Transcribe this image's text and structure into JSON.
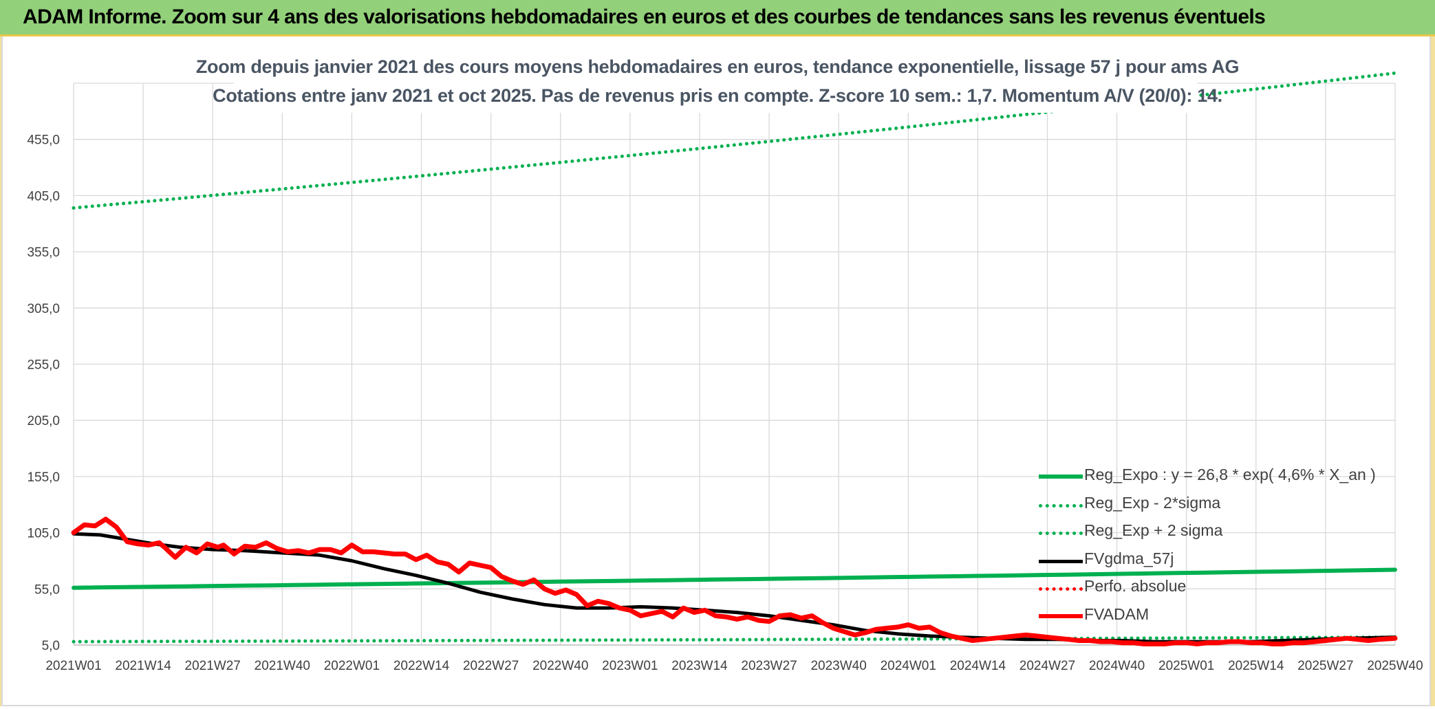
{
  "banner_title": "ADAM Informe. Zoom sur 4 ans des valorisations hebdomadaires en euros et des courbes de tendances sans les revenus éventuels",
  "chart_data": {
    "type": "line",
    "title_line1": "Zoom depuis janvier 2021 des cours moyens hebdomadaires en euros, tendance exponentielle, lissage 57 j pour ams AG",
    "title_line2": "Cotations entre janv 2021 et oct 2025. Pas de revenus pris en compte. Z-score 10 sem.: 1,7. Momentum A/V (20/0): 14.",
    "xlabel": "",
    "ylabel": "",
    "ylim": [
      5,
      505
    ],
    "grid": true,
    "y_ticks": [
      "5,0",
      "55,0",
      "105,0",
      "155,0",
      "205,0",
      "255,0",
      "305,0",
      "355,0",
      "405,0",
      "455,0"
    ],
    "y_tick_values": [
      5,
      55,
      105,
      155,
      205,
      255,
      305,
      355,
      405,
      455
    ],
    "x_ticks": [
      "2021W01",
      "2021W14",
      "2021W27",
      "2021W40",
      "2022W01",
      "2022W14",
      "2022W27",
      "2022W40",
      "2023W01",
      "2023W14",
      "2023W27",
      "2023W40",
      "2024W01",
      "2024W14",
      "2024W27",
      "2024W40",
      "2025W01",
      "2025W14",
      "2025W27",
      "2025W40"
    ],
    "x_tick_weeks": [
      0,
      13,
      26,
      39,
      52,
      65,
      78,
      91,
      104,
      117,
      130,
      143,
      156,
      169,
      182,
      195,
      208,
      221,
      234,
      247
    ],
    "legend_position": "bottom-right",
    "series": [
      {
        "name": "Reg_Expo : y = 26,8 * exp( 4,6% *  X_an )",
        "color": "#00b050",
        "style": "solid-thick",
        "x": [
          0,
          247
        ],
        "y": [
          56,
          72
        ]
      },
      {
        "name": "Reg_Exp - 2*sigma",
        "color": "#00b050",
        "style": "dotted",
        "x": [
          0,
          247
        ],
        "y": [
          8,
          12
        ]
      },
      {
        "name": "Reg_Exp + 2 sigma",
        "color": "#00b050",
        "style": "dotted",
        "x": [
          0,
          247
        ],
        "y": [
          394,
          514
        ]
      },
      {
        "name": "FVgdma_57j",
        "color": "#000000",
        "style": "solid",
        "x": [
          0,
          5,
          10,
          15,
          20,
          26,
          32,
          39,
          46,
          52,
          58,
          64,
          70,
          76,
          82,
          88,
          94,
          100,
          106,
          112,
          118,
          124,
          130,
          136,
          142,
          148,
          154,
          160,
          166,
          172,
          178,
          184,
          190,
          196,
          202,
          208,
          214,
          220,
          226,
          232,
          238,
          247
        ],
        "y": [
          104,
          103,
          99,
          95,
          92,
          90,
          89,
          87,
          85,
          80,
          73,
          67,
          60,
          52,
          46,
          41,
          38,
          38,
          39,
          38,
          36,
          34,
          31,
          27,
          23,
          18,
          15,
          13,
          12,
          11,
          10,
          10,
          9,
          9,
          8,
          8,
          8,
          8,
          9,
          10,
          11,
          12
        ]
      },
      {
        "name": "Perfo. absolue",
        "color": "#ff0000",
        "style": "dotted",
        "x": [],
        "y": []
      },
      {
        "name": "FVADAM",
        "color": "#ff0000",
        "style": "solid-thick",
        "x": [
          0,
          2,
          4,
          6,
          8,
          10,
          12,
          14,
          16,
          17,
          19,
          21,
          23,
          25,
          27,
          28,
          30,
          32,
          34,
          36,
          38,
          40,
          42,
          44,
          46,
          48,
          50,
          52,
          54,
          56,
          58,
          60,
          62,
          64,
          66,
          68,
          70,
          72,
          74,
          76,
          78,
          80,
          82,
          84,
          86,
          88,
          90,
          92,
          94,
          96,
          98,
          100,
          102,
          104,
          106,
          108,
          110,
          112,
          114,
          116,
          118,
          120,
          122,
          124,
          126,
          128,
          130,
          132,
          134,
          136,
          138,
          140,
          142,
          144,
          146,
          148,
          150,
          152,
          154,
          156,
          158,
          160,
          162,
          164,
          166,
          168,
          170,
          172,
          174,
          176,
          178,
          180,
          182,
          184,
          186,
          188,
          190,
          192,
          194,
          196,
          198,
          200,
          202,
          204,
          206,
          208,
          210,
          212,
          214,
          216,
          218,
          220,
          222,
          224,
          226,
          228,
          230,
          232,
          234,
          236,
          238,
          240,
          242,
          244,
          247
        ],
        "y": [
          105,
          112,
          111,
          117,
          110,
          97,
          95,
          94,
          96,
          92,
          83,
          92,
          87,
          95,
          92,
          94,
          86,
          93,
          92,
          96,
          91,
          88,
          89,
          87,
          90,
          90,
          87,
          94,
          88,
          88,
          87,
          86,
          86,
          81,
          85,
          79,
          77,
          70,
          78,
          76,
          74,
          66,
          62,
          59,
          63,
          55,
          51,
          54,
          50,
          40,
          44,
          42,
          38,
          36,
          31,
          33,
          35,
          30,
          38,
          34,
          36,
          31,
          30,
          28,
          30,
          27,
          26,
          31,
          32,
          29,
          31,
          25,
          20,
          17,
          14,
          16,
          19,
          20,
          21,
          23,
          20,
          21,
          16,
          13,
          11,
          9,
          10,
          11,
          12,
          13,
          14,
          13,
          12,
          11,
          10,
          9,
          9,
          8,
          8,
          7,
          7,
          6,
          6,
          6,
          7,
          7,
          6,
          7,
          7,
          8,
          8,
          7,
          7,
          6,
          6,
          7,
          7,
          8,
          9,
          10,
          11,
          10,
          9,
          10,
          11
        ]
      }
    ]
  }
}
